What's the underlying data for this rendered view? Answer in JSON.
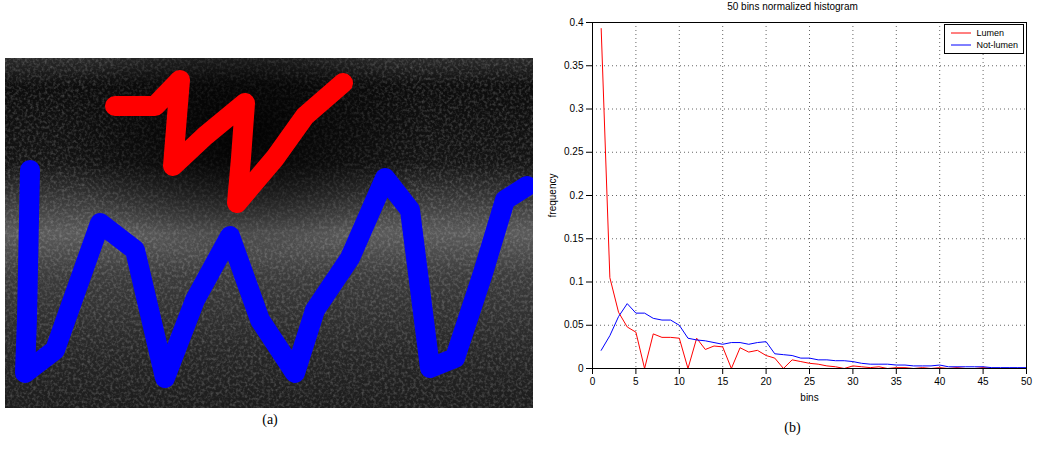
{
  "chart_data": {
    "type": "line",
    "title": "50 bins normalized histogram",
    "x_label": "bins",
    "y_label": "frequency",
    "x": [
      1,
      2,
      3,
      4,
      5,
      6,
      7,
      8,
      9,
      10,
      11,
      12,
      13,
      14,
      15,
      16,
      17,
      18,
      19,
      20,
      21,
      22,
      23,
      24,
      25,
      26,
      27,
      28,
      29,
      30,
      31,
      32,
      33,
      34,
      35,
      36,
      37,
      38,
      39,
      40,
      41,
      42,
      43,
      44,
      45,
      46,
      47,
      48,
      49,
      50
    ],
    "series": [
      {
        "name": "Lumen",
        "color": "#ff0000",
        "values": [
          0.393,
          0.105,
          0.065,
          0.048,
          0.042,
          0,
          0.04,
          0.036,
          0.036,
          0.035,
          0,
          0.035,
          0.022,
          0.026,
          0.025,
          0,
          0.024,
          0.019,
          0.021,
          0.015,
          0.012,
          0,
          0.01,
          0.008,
          0.006,
          0.005,
          0.003,
          0.002,
          0,
          0.003,
          0.002,
          0.001,
          0.002,
          0,
          0.001,
          0.001,
          0,
          0.001,
          0,
          0.001,
          0,
          0.001,
          0,
          0,
          0.001,
          0,
          0,
          0,
          0,
          0
        ]
      },
      {
        "name": "Not-lumen",
        "color": "#0000ff",
        "values": [
          0.021,
          0.038,
          0.06,
          0.075,
          0.064,
          0.064,
          0.058,
          0.056,
          0.056,
          0.05,
          0.035,
          0.033,
          0.032,
          0.03,
          0.028,
          0.03,
          0.03,
          0.028,
          0.03,
          0.031,
          0.017,
          0.016,
          0.015,
          0.012,
          0.012,
          0.01,
          0.01,
          0.009,
          0.009,
          0.008,
          0.006,
          0.005,
          0.005,
          0.005,
          0.004,
          0.004,
          0.003,
          0.003,
          0.003,
          0.004,
          0.002,
          0.002,
          0.002,
          0.002,
          0.002,
          0.001,
          0.001,
          0.001,
          0.001,
          0.001
        ]
      }
    ],
    "xlim": [
      0,
      50
    ],
    "xticks": [
      0,
      5,
      10,
      15,
      20,
      25,
      30,
      35,
      40,
      45,
      50
    ],
    "ylim": [
      0,
      0.4
    ],
    "yticks": [
      0,
      0.05,
      0.1,
      0.15,
      0.2,
      0.25,
      0.3,
      0.35,
      0.4
    ],
    "grid": true,
    "legend": "top-right"
  },
  "captions": {
    "a": "(a)",
    "b": "(b)"
  }
}
